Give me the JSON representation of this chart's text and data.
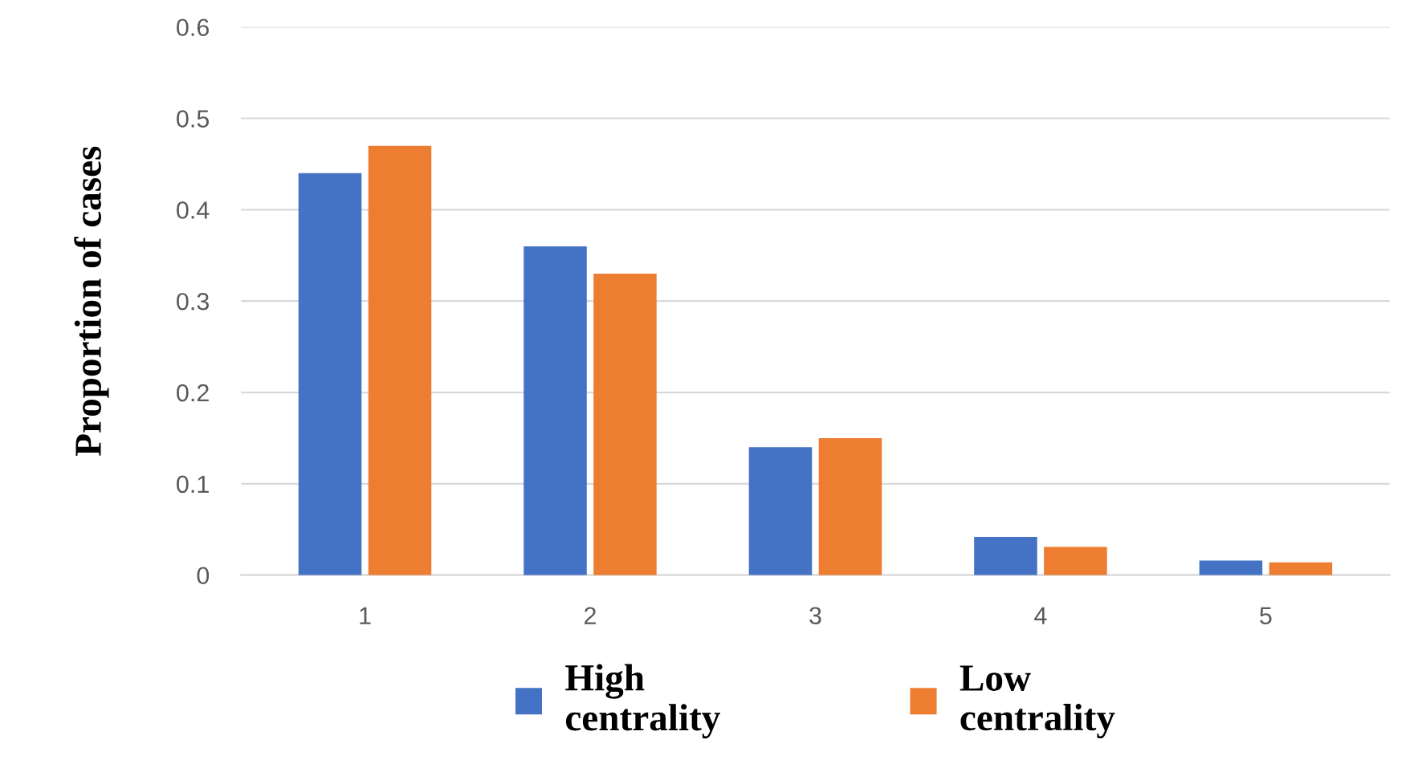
{
  "chart_data": {
    "type": "bar",
    "ylabel": "Proportion of cases",
    "categories": [
      "1",
      "2",
      "3",
      "4",
      "5"
    ],
    "series": [
      {
        "name": "High\ncentrality",
        "color": "#4472c4",
        "values": [
          0.44,
          0.36,
          0.14,
          0.042,
          0.016
        ]
      },
      {
        "name": "Low\ncentrality",
        "color": "#ed7d31",
        "values": [
          0.47,
          0.33,
          0.15,
          0.031,
          0.014
        ]
      }
    ],
    "ylim": [
      0,
      0.6
    ],
    "yticks": [
      0,
      0.1,
      0.2,
      0.3,
      0.4,
      0.5,
      0.6
    ],
    "grid": "y",
    "legend": "bottom"
  }
}
